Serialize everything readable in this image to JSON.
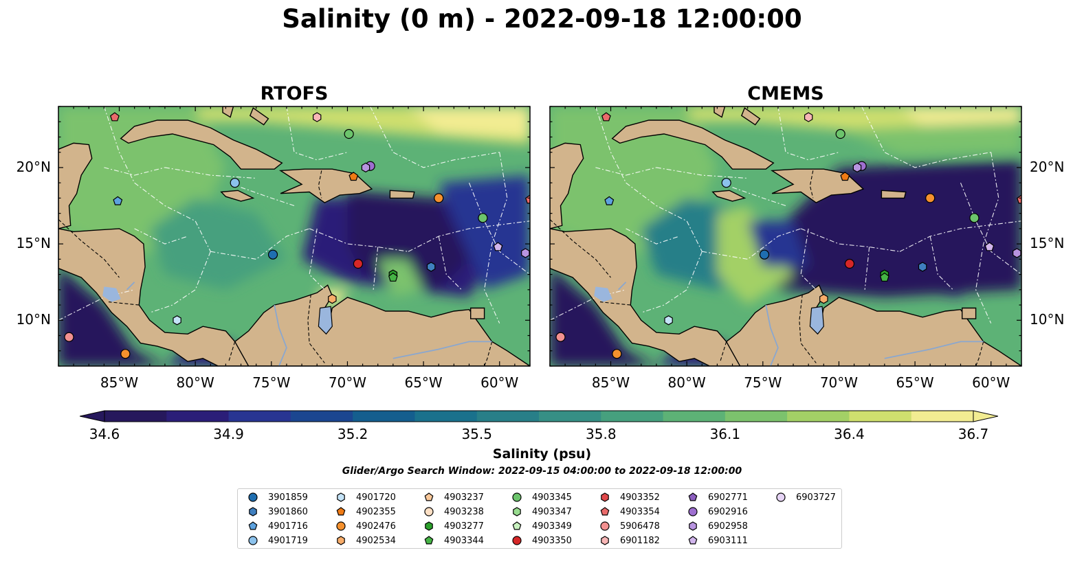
{
  "title": "Salinity (0 m) - 2022-09-18 12:00:00",
  "panels": [
    {
      "id": "rtofs",
      "title": "RTOFS",
      "pattern": "rtofs"
    },
    {
      "id": "cmems",
      "title": "CMEMS",
      "pattern": "cmems"
    }
  ],
  "axes": {
    "lon_ticks": [
      "85°W",
      "80°W",
      "75°W",
      "70°W",
      "65°W",
      "60°W"
    ],
    "lat_ticks": [
      "20°N",
      "15°N",
      "10°N"
    ],
    "lon_range": [
      -89,
      -58
    ],
    "lat_range": [
      7,
      24
    ]
  },
  "colorbar": {
    "ticks": [
      "34.6",
      "34.9",
      "35.2",
      "35.5",
      "35.8",
      "36.1",
      "36.4",
      "36.7"
    ],
    "range": [
      34.6,
      36.7
    ],
    "label": "Salinity (psu)",
    "colors": [
      "#26185c",
      "#2b1e78",
      "#283592",
      "#1b4690",
      "#145e8e",
      "#1a718c",
      "#287f88",
      "#368f85",
      "#46a07e",
      "#5db276",
      "#7cc26d",
      "#a3d066",
      "#cfdf6e",
      "#f2ec92"
    ]
  },
  "search_window": "Glider/Argo Search Window: 2022-09-15 04:00:00 to 2022-09-18 12:00:00",
  "land_color": "#d2b48c",
  "legend": [
    {
      "label": "3901859",
      "shape": "circle",
      "color": "#1f6eb0"
    },
    {
      "label": "3901860",
      "shape": "hexagon",
      "color": "#3f7fbf"
    },
    {
      "label": "4901716",
      "shape": "pentagon",
      "color": "#5da2df"
    },
    {
      "label": "4901719",
      "shape": "circle",
      "color": "#8cc2ec"
    },
    {
      "label": "4901720",
      "shape": "hexagon",
      "color": "#c4e3f7"
    },
    {
      "label": "4902355",
      "shape": "pentagon",
      "color": "#f07b15"
    },
    {
      "label": "4902476",
      "shape": "circle",
      "color": "#f5912e"
    },
    {
      "label": "4902534",
      "shape": "hexagon",
      "color": "#f8ad6a"
    },
    {
      "label": "4903237",
      "shape": "pentagon",
      "color": "#f9c89a"
    },
    {
      "label": "4903238",
      "shape": "circle",
      "color": "#fde0c5"
    },
    {
      "label": "4903277",
      "shape": "hexagon",
      "color": "#2ca02c"
    },
    {
      "label": "4903344",
      "shape": "pentagon",
      "color": "#46b446"
    },
    {
      "label": "4903345",
      "shape": "circle",
      "color": "#6cc46c"
    },
    {
      "label": "4903347",
      "shape": "hexagon",
      "color": "#98dc8f"
    },
    {
      "label": "4903349",
      "shape": "pentagon",
      "color": "#c9f2c0"
    },
    {
      "label": "4903350",
      "shape": "circle",
      "color": "#d62728"
    },
    {
      "label": "4903352",
      "shape": "hexagon",
      "color": "#e0484a"
    },
    {
      "label": "4903354",
      "shape": "pentagon",
      "color": "#ea6b6b"
    },
    {
      "label": "5906478",
      "shape": "circle",
      "color": "#f29090"
    },
    {
      "label": "6901182",
      "shape": "hexagon",
      "color": "#f7b6b6"
    },
    {
      "label": "6902771",
      "shape": "pentagon",
      "color": "#8c5fbf"
    },
    {
      "label": "6902916",
      "shape": "circle",
      "color": "#9e6fd0"
    },
    {
      "label": "6902958",
      "shape": "hexagon",
      "color": "#b894e0"
    },
    {
      "label": "6903111",
      "shape": "pentagon",
      "color": "#d1b5ec"
    },
    {
      "label": "6903727",
      "shape": "circle",
      "color": "#e6d4f5"
    }
  ],
  "floats": [
    {
      "lon": -74.9,
      "lat": 14.3,
      "legend_index": 0
    },
    {
      "lon": -64.5,
      "lat": 13.5,
      "legend_index": 1
    },
    {
      "lon": -85.1,
      "lat": 17.8,
      "legend_index": 2
    },
    {
      "lon": -77.4,
      "lat": 19.0,
      "legend_index": 3
    },
    {
      "lon": -81.2,
      "lat": 10.0,
      "legend_index": 4
    },
    {
      "lon": -69.6,
      "lat": 19.4,
      "legend_index": 5
    },
    {
      "lon": -64.0,
      "lat": 18.0,
      "legend_index": 6
    },
    {
      "lon": -71.0,
      "lat": 11.4,
      "legend_index": 7
    },
    {
      "lon": -67.0,
      "lat": 13.0,
      "legend_index": 10
    },
    {
      "lon": -67.0,
      "lat": 12.8,
      "legend_index": 11
    },
    {
      "lon": -61.1,
      "lat": 16.7,
      "legend_index": 12
    },
    {
      "lon": -69.9,
      "lat": 22.2,
      "legend_index": 12
    },
    {
      "lon": -69.3,
      "lat": 13.7,
      "legend_index": 15
    },
    {
      "lon": -85.3,
      "lat": 23.3,
      "legend_index": 17
    },
    {
      "lon": -58.0,
      "lat": 17.9,
      "legend_index": 17
    },
    {
      "lon": -88.3,
      "lat": 8.9,
      "legend_index": 18
    },
    {
      "lon": -72.0,
      "lat": 23.3,
      "legend_index": 19
    },
    {
      "lon": -84.6,
      "lat": 7.8,
      "legend_index": 6
    },
    {
      "lon": -68.5,
      "lat": 20.1,
      "legend_index": 21
    },
    {
      "lon": -68.8,
      "lat": 20.0,
      "legend_index": 22
    },
    {
      "lon": -60.1,
      "lat": 14.8,
      "legend_index": 23
    },
    {
      "lon": -58.3,
      "lat": 14.4,
      "legend_index": 22
    }
  ]
}
